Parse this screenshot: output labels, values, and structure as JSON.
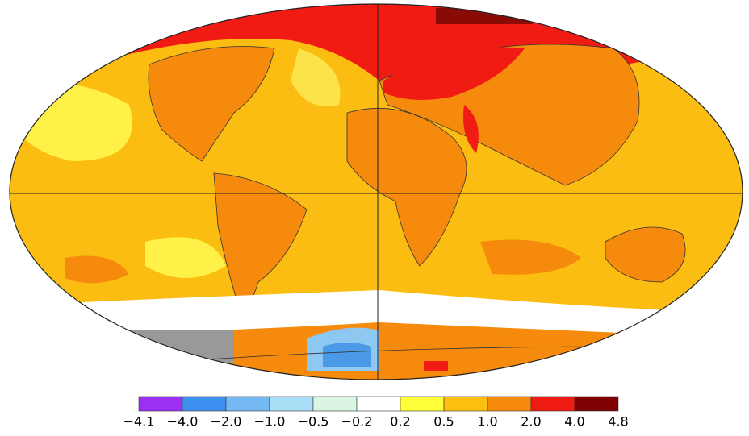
{
  "legend": {
    "colors": [
      "#9b30f2",
      "#3d8ff0",
      "#74b9f3",
      "#a8def6",
      "#daf5e2",
      "#ffffff",
      "#ffff3c",
      "#fdc00f",
      "#f7890c",
      "#ef1a12",
      "#7f0000"
    ],
    "ticks": [
      "−4.1",
      "−4.0",
      "−2.0",
      "−1.0",
      "−0.5",
      "−0.2",
      "0.2",
      "0.5",
      "1.0",
      "2.0",
      "4.0",
      "4.8"
    ]
  }
}
